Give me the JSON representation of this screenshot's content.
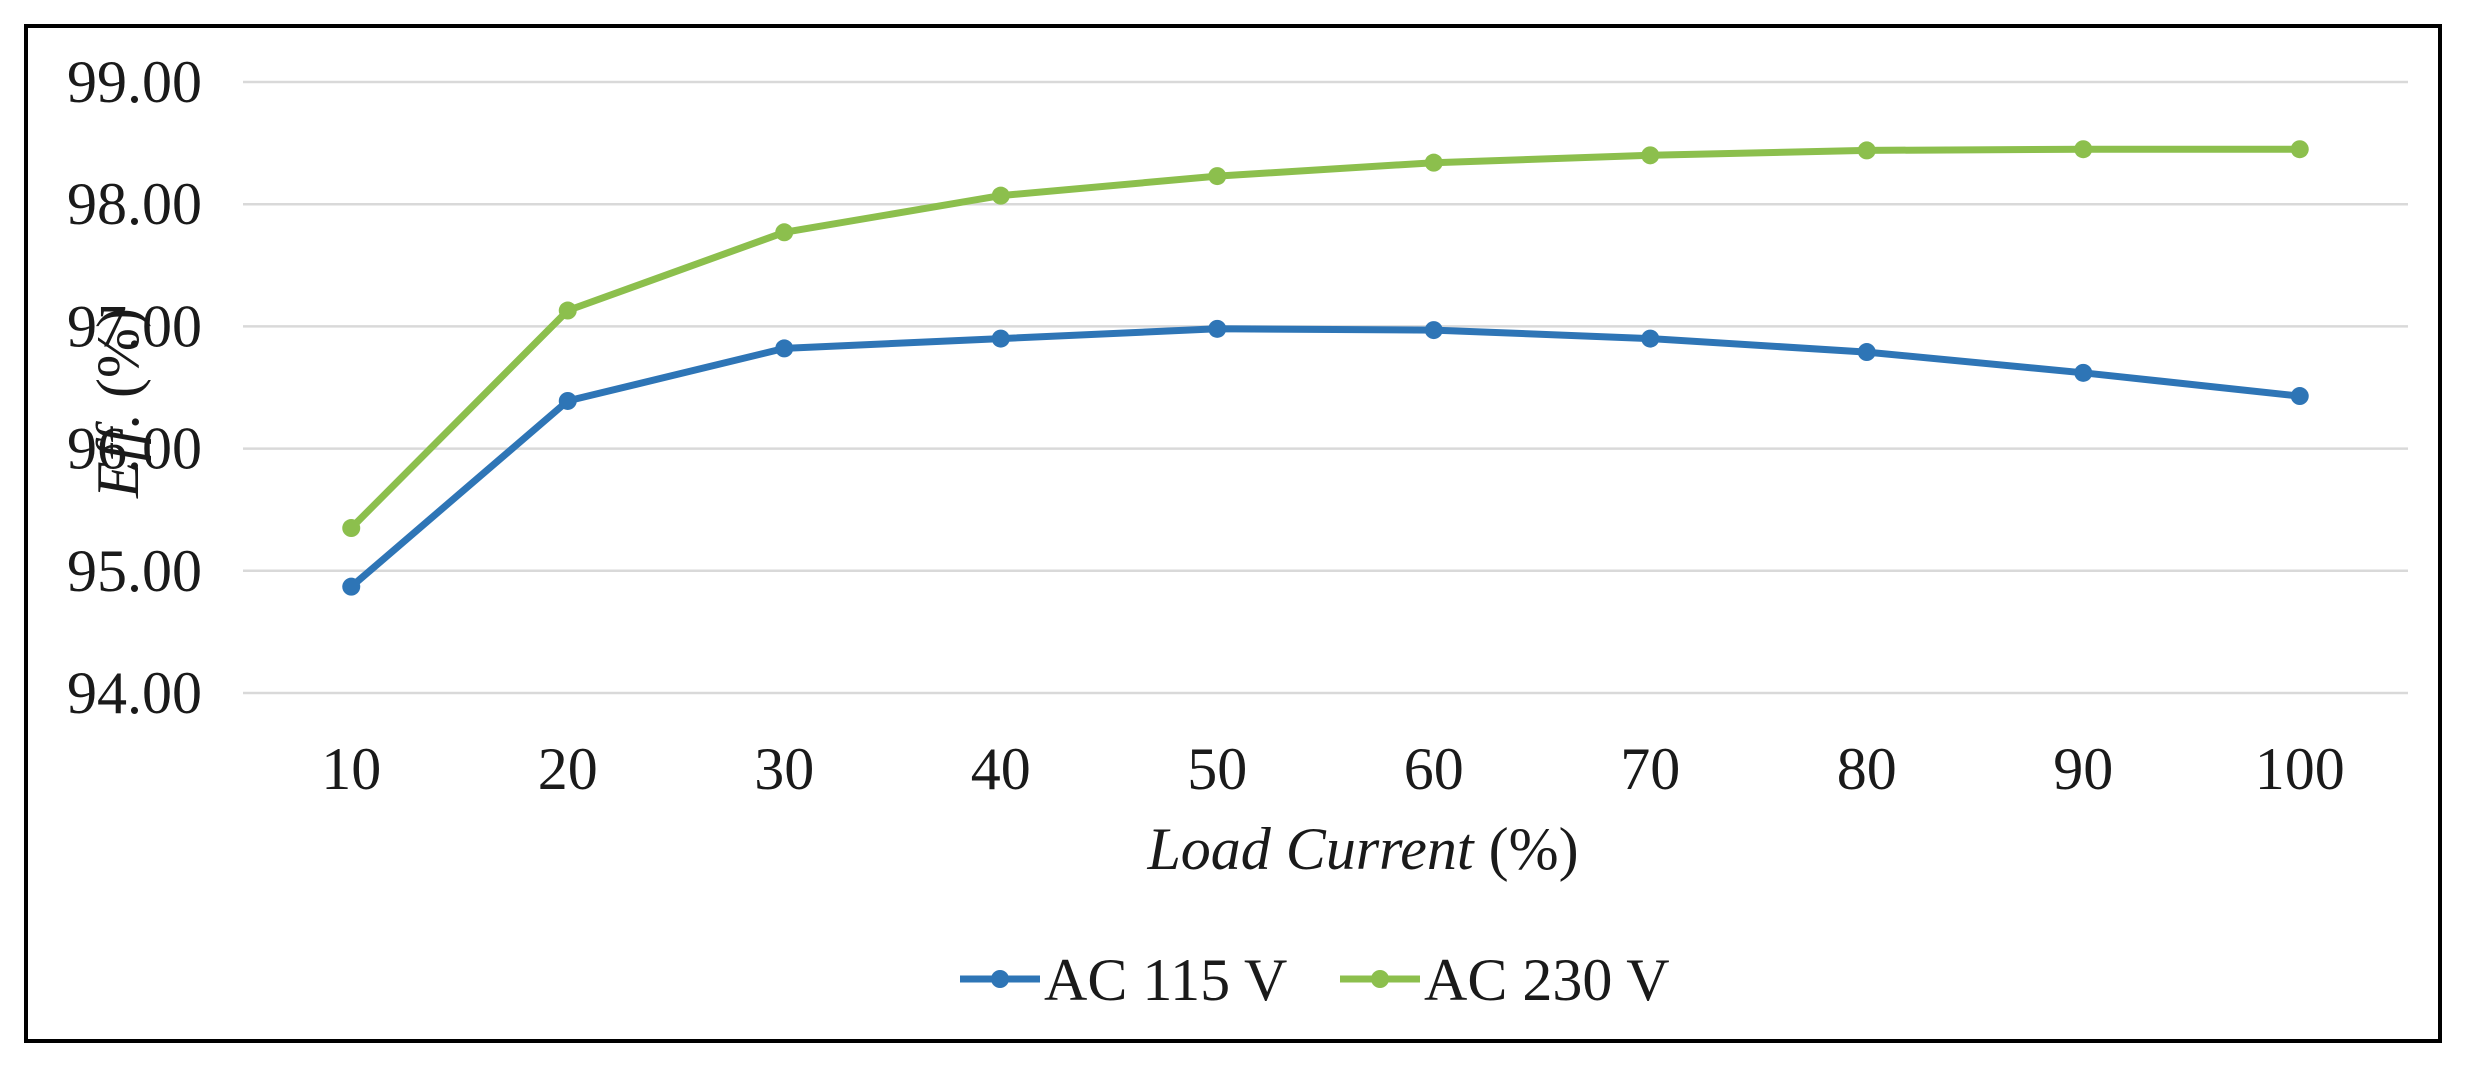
{
  "chart_data": {
    "type": "line",
    "title": "",
    "xlabel": {
      "italic": "Load Current",
      "plain": " (%)"
    },
    "ylabel": {
      "italic": "Eff.",
      "plain": " (%)"
    },
    "categories": [
      "10",
      "20",
      "30",
      "40",
      "50",
      "60",
      "70",
      "80",
      "90",
      "100"
    ],
    "ylim": [
      94.0,
      99.0
    ],
    "yticks": [
      "94.00",
      "95.00",
      "96.00",
      "97.00",
      "98.00",
      "99.00"
    ],
    "grid": true,
    "legend_position": "bottom-center",
    "series": [
      {
        "name": "AC 115 V",
        "color": "#2e75b6",
        "values": [
          94.87,
          96.39,
          96.82,
          96.9,
          96.98,
          96.97,
          96.9,
          96.79,
          96.62,
          96.43
        ]
      },
      {
        "name": "AC 230 V",
        "color": "#8cbf4d",
        "values": [
          95.35,
          97.13,
          97.77,
          98.07,
          98.23,
          98.34,
          98.4,
          98.44,
          98.45,
          98.45
        ]
      }
    ]
  }
}
